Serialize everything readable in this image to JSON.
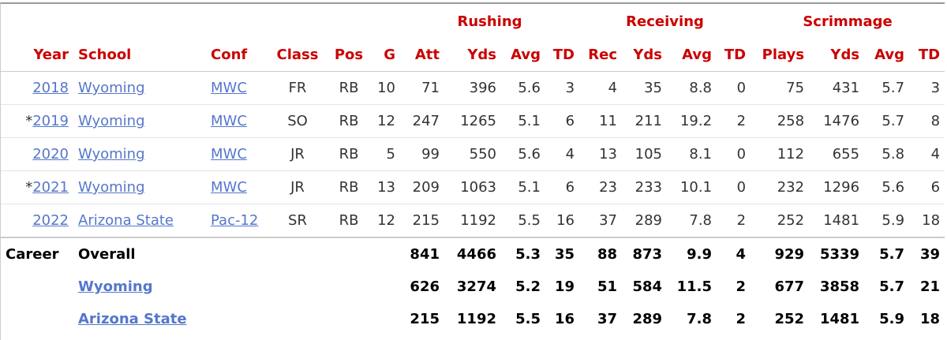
{
  "table": {
    "header_groups": [
      "Rushing",
      "Receiving",
      "Scrimmage"
    ],
    "columns": [
      "Year",
      "School",
      "Conf",
      "Class",
      "Pos",
      "G",
      "Att",
      "Yds",
      "Avg",
      "TD",
      "Rec",
      "Yds",
      "Avg",
      "TD",
      "Plays",
      "Yds",
      "Avg",
      "TD"
    ],
    "rows": [
      {
        "year": "2018",
        "school": "Wyoming",
        "conf": "MWC",
        "cells": [
          "FR",
          "RB",
          "10",
          "71",
          "396",
          "5.6",
          "3",
          "4",
          "35",
          "8.8",
          "0",
          "75",
          "431",
          "5.7",
          "3"
        ]
      },
      {
        "marker": "*",
        "year": "2019",
        "school": "Wyoming",
        "conf": "MWC",
        "cells": [
          "SO",
          "RB",
          "12",
          "247",
          "1265",
          "5.1",
          "6",
          "11",
          "211",
          "19.2",
          "2",
          "258",
          "1476",
          "5.7",
          "8"
        ]
      },
      {
        "year": "2020",
        "school": "Wyoming",
        "conf": "MWC",
        "cells": [
          "JR",
          "RB",
          "5",
          "99",
          "550",
          "5.6",
          "4",
          "13",
          "105",
          "8.1",
          "0",
          "112",
          "655",
          "5.8",
          "4"
        ]
      },
      {
        "marker": "*",
        "year": "2021",
        "school": "Wyoming",
        "conf": "MWC",
        "cells": [
          "JR",
          "RB",
          "13",
          "209",
          "1063",
          "5.1",
          "6",
          "23",
          "233",
          "10.1",
          "0",
          "232",
          "1296",
          "5.6",
          "6"
        ]
      },
      {
        "year": "2022",
        "school": "Arizona State",
        "conf": "Pac-12",
        "cells": [
          "SR",
          "RB",
          "12",
          "215",
          "1192",
          "5.5",
          "16",
          "37",
          "289",
          "7.8",
          "2",
          "252",
          "1481",
          "5.9",
          "18"
        ]
      }
    ],
    "totals": [
      {
        "label": "Career",
        "school": "Overall",
        "cells": [
          "841",
          "4466",
          "5.3",
          "35",
          "88",
          "873",
          "9.9",
          "4",
          "929",
          "5339",
          "5.7",
          "39"
        ]
      },
      {
        "school": "Wyoming",
        "cells": [
          "626",
          "3274",
          "5.2",
          "19",
          "51",
          "584",
          "11.5",
          "2",
          "677",
          "3858",
          "5.7",
          "21"
        ]
      },
      {
        "school": "Arizona State",
        "cells": [
          "215",
          "1192",
          "5.5",
          "16",
          "37",
          "289",
          "7.8",
          "2",
          "252",
          "1481",
          "5.9",
          "18"
        ]
      }
    ]
  }
}
